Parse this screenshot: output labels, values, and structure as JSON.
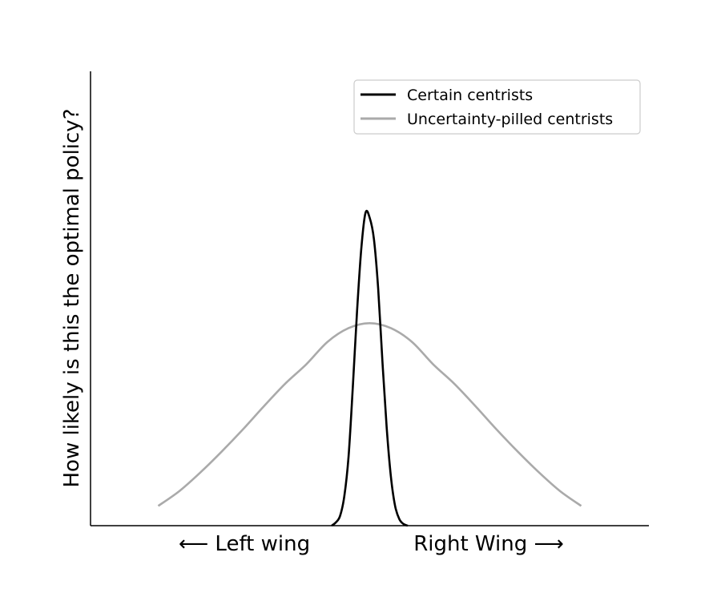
{
  "chart_data": {
    "type": "line",
    "ylabel": "How likely is this the optimal policy?",
    "x_tick_labels": [
      "⟵  Left wing",
      "Right Wing ⟶"
    ],
    "xlim": [
      -3.3,
      3.3
    ],
    "ylim": [
      0,
      1.38
    ],
    "grid": false,
    "legend_position": "top-right",
    "series": [
      {
        "name": "Certain centrists",
        "color": "#000000",
        "x": [
          -0.45,
          -0.4,
          -0.35,
          -0.3,
          -0.25,
          -0.2,
          -0.15,
          -0.1,
          -0.05,
          0.0,
          0.05,
          0.1,
          0.15,
          0.2,
          0.25,
          0.3,
          0.35,
          0.4,
          0.45
        ],
        "y": [
          0.0,
          0.01,
          0.03,
          0.09,
          0.21,
          0.42,
          0.65,
          0.84,
          0.95,
          0.935,
          0.87,
          0.72,
          0.5,
          0.3,
          0.15,
          0.06,
          0.02,
          0.005,
          0.0
        ]
      },
      {
        "name": "Uncertainty-pilled centrists",
        "color": "#aaaaaa",
        "x": [
          -2.5,
          -2.25,
          -2.0,
          -1.75,
          -1.5,
          -1.25,
          -1.0,
          -0.75,
          -0.5,
          -0.25,
          0.0,
          0.25,
          0.5,
          0.75,
          1.0,
          1.25,
          1.5,
          1.75,
          2.0,
          2.25,
          2.5
        ],
        "y": [
          0.06,
          0.105,
          0.162,
          0.225,
          0.292,
          0.363,
          0.431,
          0.49,
          0.558,
          0.6,
          0.615,
          0.6,
          0.558,
          0.49,
          0.431,
          0.363,
          0.292,
          0.225,
          0.162,
          0.105,
          0.06
        ]
      }
    ]
  }
}
